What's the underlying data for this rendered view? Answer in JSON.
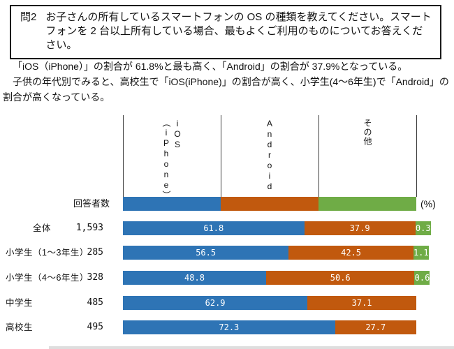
{
  "question": {
    "number": "問2",
    "text": "お子さんの所有しているスマートフォンの OS の種類を教えてください。スマートフォンを 2 台以上所有している場合、最もよくご利用のものについてお答えください。"
  },
  "summary": {
    "paragraphs": [
      "「iOS（iPhone）」の割合が 61.8%と最も高く、「Android」の割合が 37.9%となっている。",
      "子供の年代別でみると、高校生で「iOS(iPhone)」の割合が高く、小学生(4～6年生)で「Android」の割合が高くなっている。"
    ]
  },
  "chart_data": {
    "type": "bar",
    "orientation": "horizontal",
    "stacked": true,
    "xlim": [
      0,
      100
    ],
    "unit_label": "(%)",
    "respondents_label": "回答者数",
    "series_labels": [
      "iOS\n（iPhone）",
      "Android",
      "その他"
    ],
    "legend_position": "top",
    "grid": "column-separators-only",
    "colors": {
      "ios": "#2E74B5",
      "android": "#C1590E",
      "other": "#6FAC46"
    },
    "categories": [
      "全体",
      "小学生（1～3年生）",
      "小学生（4～6年生）",
      "中学生",
      "高校生"
    ],
    "rows": [
      {
        "label": "全体",
        "n": "1,593",
        "ios": 61.8,
        "android": 37.9,
        "other": 0.3
      },
      {
        "label": "小学生（1～3年生）",
        "n": "285",
        "ios": 56.5,
        "android": 42.5,
        "other": 1.1
      },
      {
        "label": "小学生（4～6年生）",
        "n": "328",
        "ios": 48.8,
        "android": 50.6,
        "other": 0.6
      },
      {
        "label": "中学生",
        "n": "485",
        "ios": 62.9,
        "android": 37.1,
        "other": null
      },
      {
        "label": "高校生",
        "n": "495",
        "ios": 72.3,
        "android": 27.7,
        "other": null
      }
    ]
  }
}
